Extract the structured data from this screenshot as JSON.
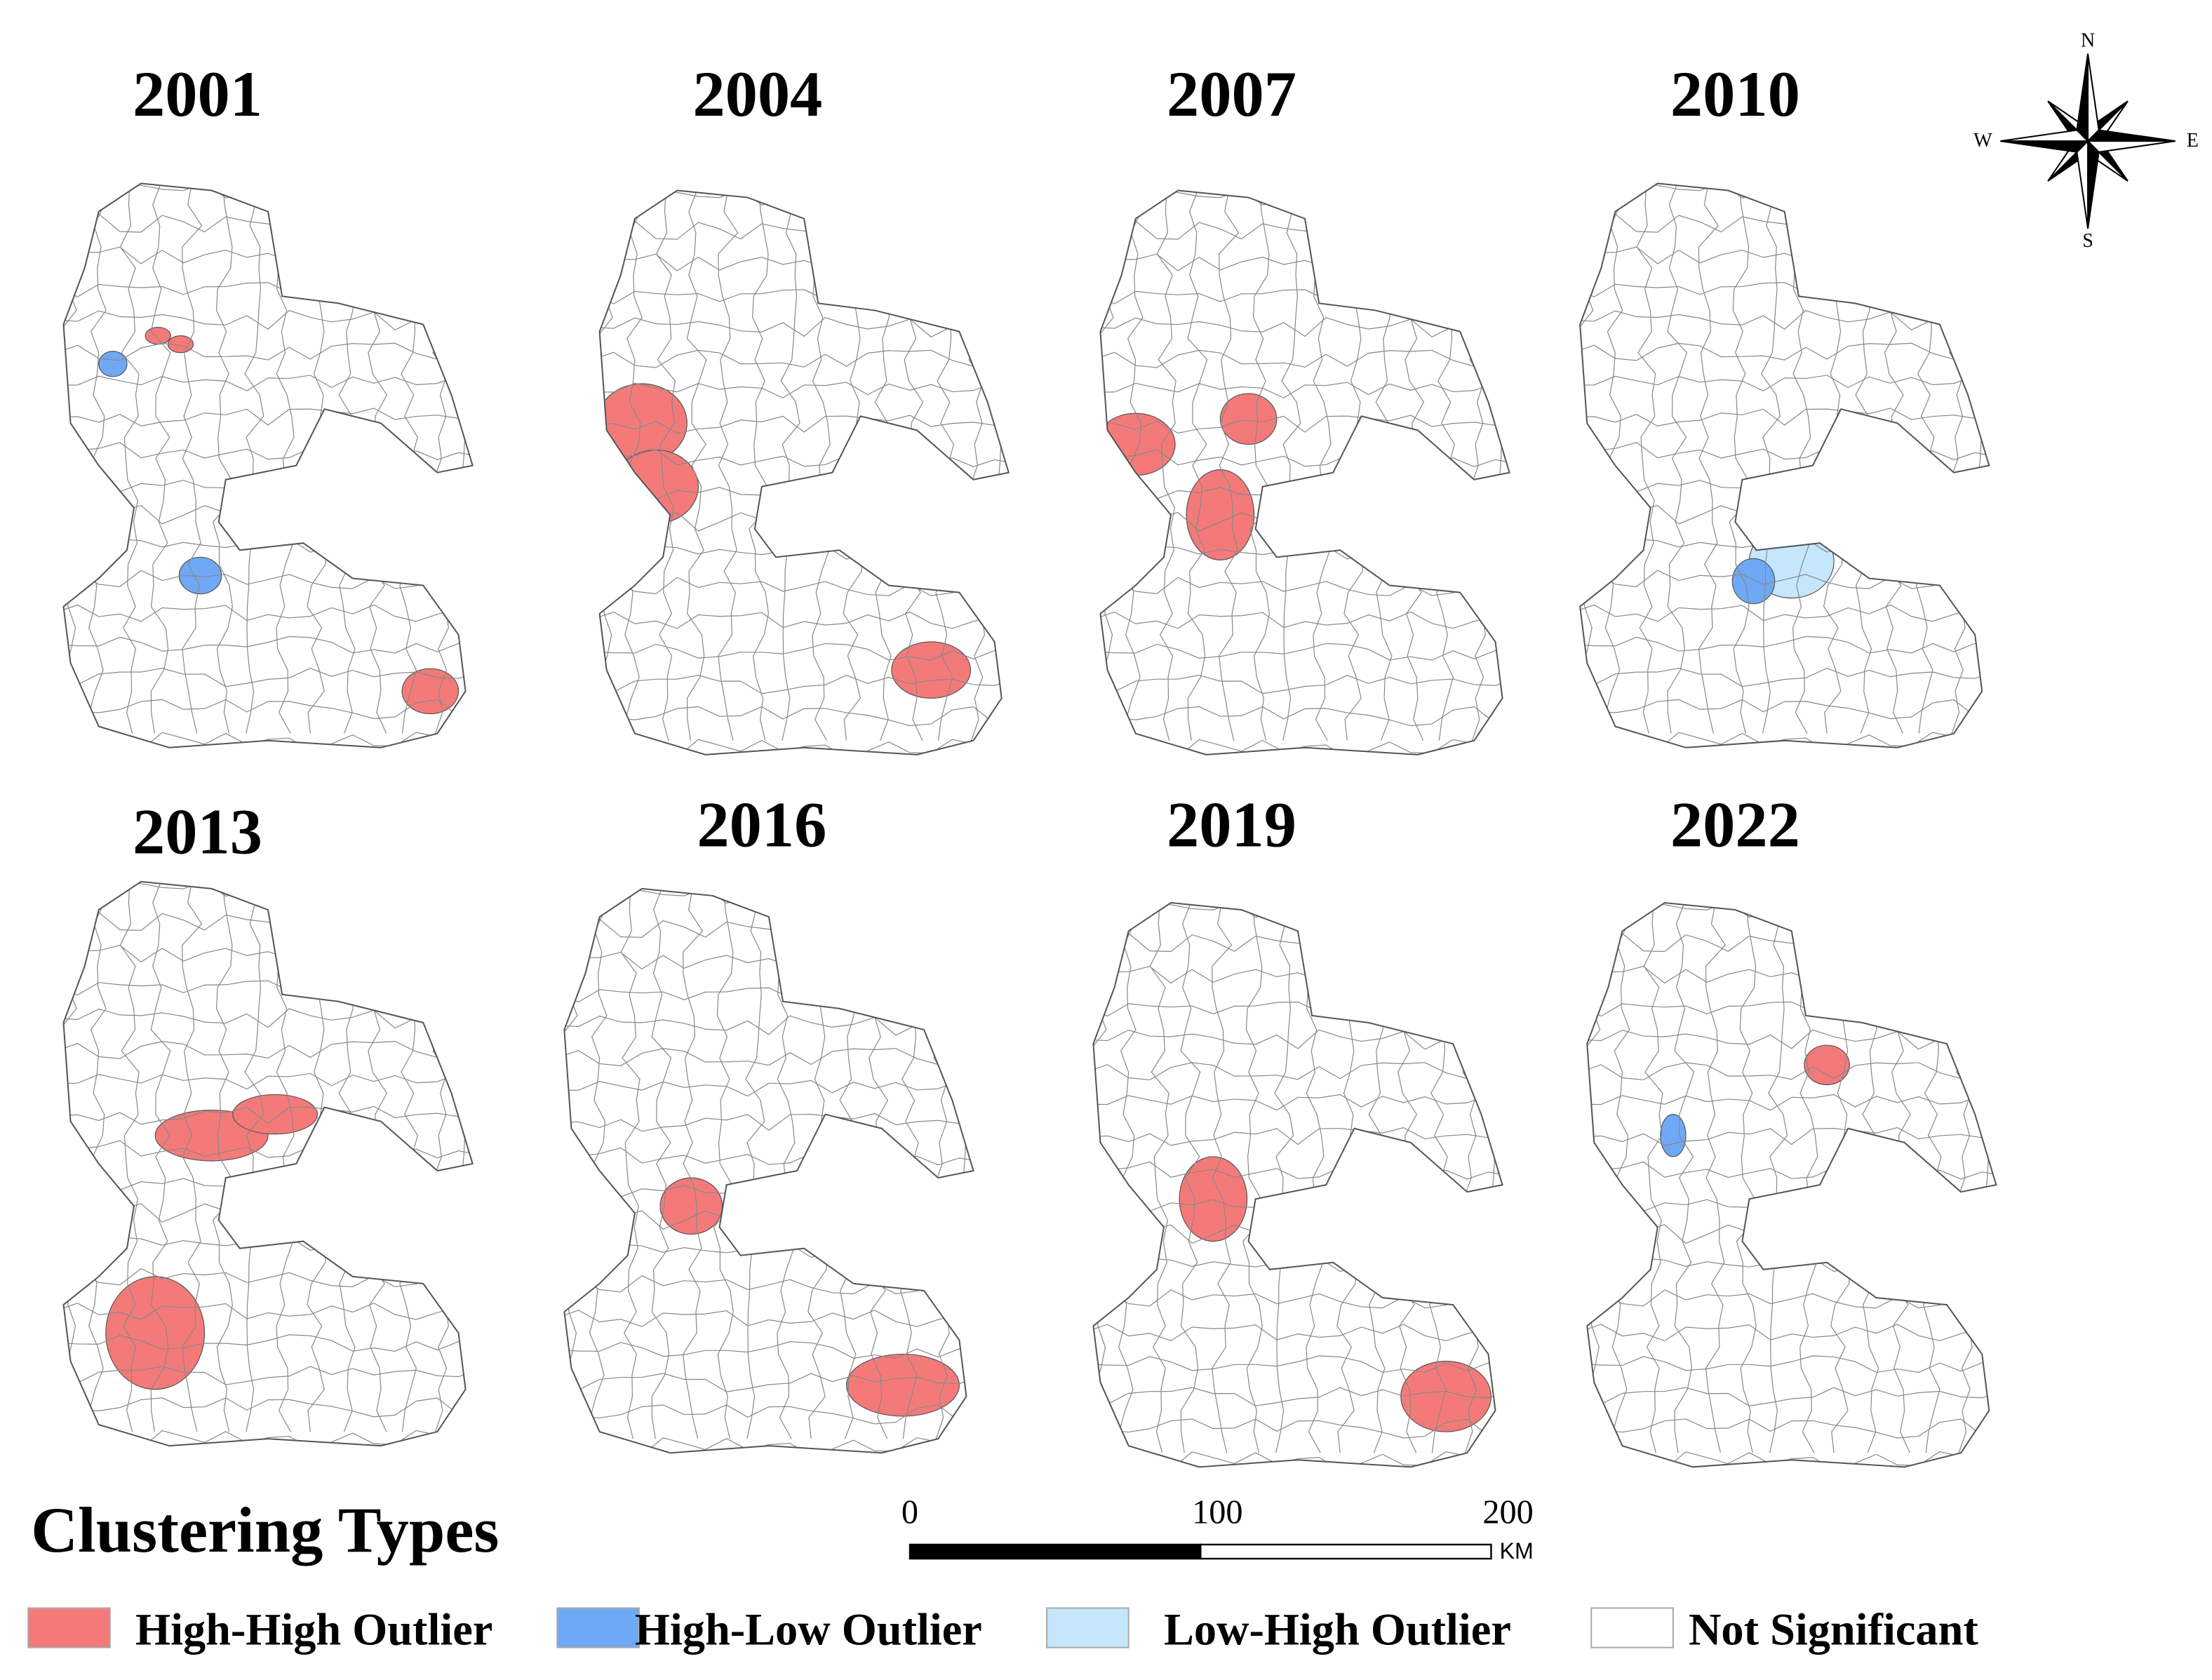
{
  "panels": [
    {
      "year": "2001"
    },
    {
      "year": "2004"
    },
    {
      "year": "2007"
    },
    {
      "year": "2010"
    },
    {
      "year": "2013"
    },
    {
      "year": "2016"
    },
    {
      "year": "2019"
    },
    {
      "year": "2022"
    }
  ],
  "legend": {
    "title": "Clustering Types",
    "items": [
      {
        "label": "High-High Outlier",
        "color": "#f47a7a"
      },
      {
        "label": "High-Low Outlier",
        "color": "#6fa8f5"
      },
      {
        "label": "Low-High Outlier",
        "color": "#c6e6fb"
      },
      {
        "label": "Not Significant",
        "color": "#ffffff"
      }
    ]
  },
  "compass": {
    "north": "N",
    "south": "S",
    "east": "E",
    "west": "W"
  },
  "scale_bar": {
    "ticks": [
      0,
      100,
      200
    ],
    "unit": "KM"
  }
}
